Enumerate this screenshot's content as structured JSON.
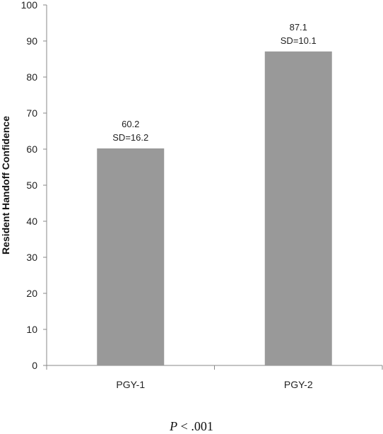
{
  "chart_data": {
    "type": "bar",
    "categories": [
      "PGY-1",
      "PGY-2"
    ],
    "values": [
      60.2,
      87.1
    ],
    "data_labels": [
      {
        "value": "60.2",
        "sd": "SD=16.2"
      },
      {
        "value": "87.1",
        "sd": "SD=10.1"
      }
    ],
    "ylabel": "Resident Handoff Confidence",
    "xlabel": "",
    "ylim": [
      0,
      100
    ],
    "yticks": [
      0,
      10,
      20,
      30,
      40,
      50,
      60,
      70,
      80,
      90,
      100
    ],
    "grid": false,
    "bar_color": "#999999"
  },
  "footnote": {
    "p_symbol": "P",
    "p_text": " < .001"
  }
}
